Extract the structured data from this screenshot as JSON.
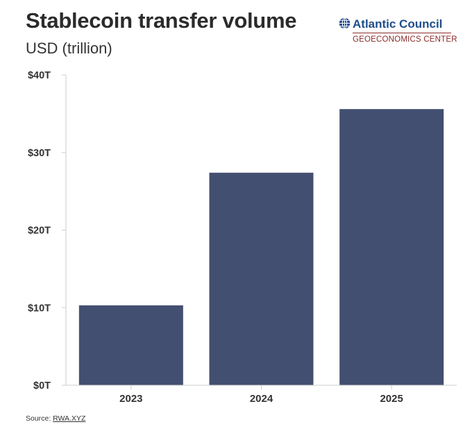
{
  "header": {
    "title": "Stablecoin transfer volume",
    "subtitle": "USD (trillion)"
  },
  "logo": {
    "name": "Atlantic Council",
    "center": "GEOECONOMICS CENTER",
    "icon": "globe-icon"
  },
  "footer": {
    "source_label": "Source:",
    "source_link": "RWA.XYZ"
  },
  "colors": {
    "bar": "#434f70",
    "axis": "#cccccc",
    "logo_blue": "#1f4e8c",
    "logo_red": "#8b2a2a"
  },
  "chart_data": {
    "type": "bar",
    "title": "Stablecoin transfer volume",
    "subtitle": "USD (trillion)",
    "categories": [
      "2023",
      "2024",
      "2025"
    ],
    "values": [
      10.3,
      27.4,
      35.6
    ],
    "ylim": [
      0,
      40
    ],
    "yticks": [
      0,
      10,
      20,
      30,
      40
    ],
    "ytick_labels": [
      "$0T",
      "$10T",
      "$20T",
      "$30T",
      "$40T"
    ],
    "xlabel": "",
    "ylabel": "",
    "grid": false,
    "legend": "none"
  }
}
